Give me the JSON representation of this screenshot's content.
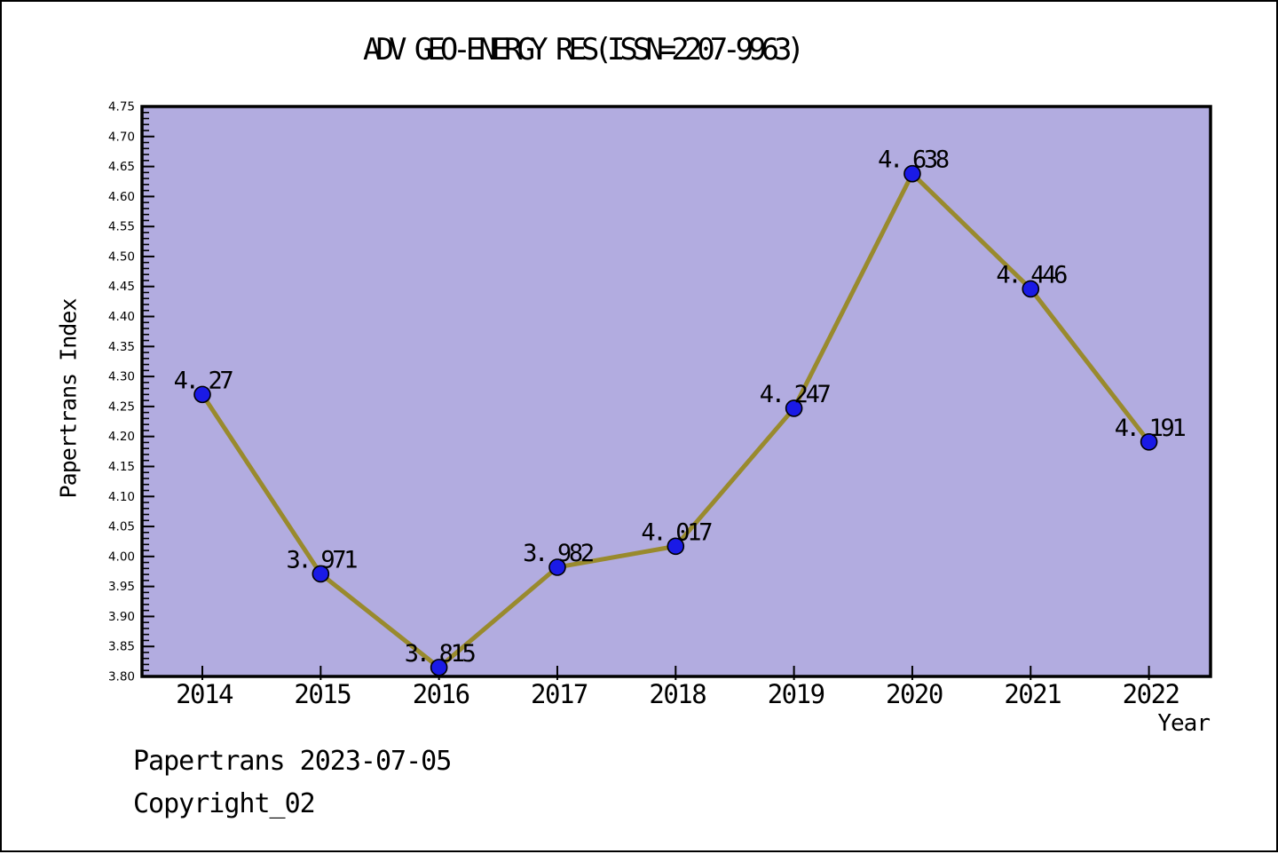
{
  "title": "ADV GEO-ENERGY RES(ISSN=2207-9963)",
  "footer": {
    "line1": "Papertrans 2023-07-05",
    "line2": "Copyright_02"
  },
  "chart_data": {
    "type": "line",
    "title": "ADV GEO-ENERGY RES(ISSN=2207-9963)",
    "xlabel": "Year",
    "ylabel": "Papertrans Index",
    "categories": [
      "2014",
      "2015",
      "2016",
      "2017",
      "2018",
      "2019",
      "2020",
      "2021",
      "2022"
    ],
    "values": [
      4.27,
      3.971,
      3.815,
      3.982,
      4.017,
      4.247,
      4.638,
      4.446,
      4.191
    ],
    "point_labels": [
      "4. 27",
      "3. 971",
      "3. 815",
      "3. 982",
      "4. 017",
      "4. 247",
      "4. 638",
      "4. 446",
      "4. 191"
    ],
    "ylim": [
      3.8,
      4.75
    ],
    "y_major_step": 0.05,
    "y_minor_step": 0.01,
    "y_tick_labels": [
      "3.80",
      "3.85",
      "3.90",
      "3.95",
      "4.00",
      "4.05",
      "4.10",
      "4.15",
      "4.20",
      "4.25",
      "4.30",
      "4.35",
      "4.40",
      "4.45",
      "4.50",
      "4.55",
      "4.60",
      "4.65",
      "4.70",
      "4.75"
    ],
    "grid": false,
    "legend": null,
    "colors": {
      "plot_background": "#b2ace0",
      "line": "#998a2d",
      "marker_fill": "#1a1ae6",
      "marker_edge": "#000000",
      "axis": "#000000",
      "text": "#000000"
    }
  }
}
